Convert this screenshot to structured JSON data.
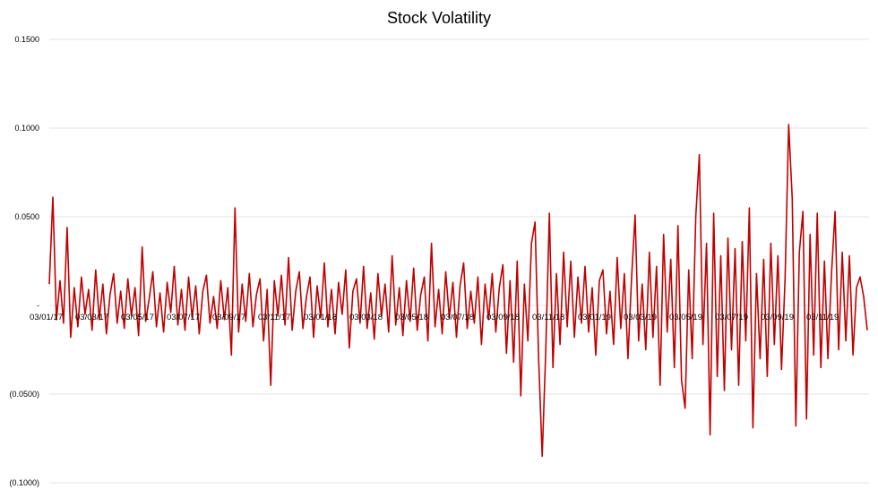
{
  "chart_data": {
    "type": "line",
    "title": "Stock Volatility",
    "xlabel": "",
    "ylabel": "",
    "ylim": [
      -0.1,
      0.15
    ],
    "grid": true,
    "legend": "none",
    "line_color": "#c00000",
    "y_ticks": [
      {
        "value": 0.15,
        "label": "0.1500"
      },
      {
        "value": 0.1,
        "label": "0.1000"
      },
      {
        "value": 0.05,
        "label": "0.0500"
      },
      {
        "value": 0,
        "label": "-"
      },
      {
        "value": -0.05,
        "label": "(0.0500)"
      },
      {
        "value": -0.1,
        "label": "(0.1000)"
      }
    ],
    "x_tick_labels": [
      "03/01/17",
      "03/03/17",
      "03/05/17",
      "03/07/17",
      "03/09/17",
      "03/11/17",
      "03/01/18",
      "03/03/18",
      "03/05/18",
      "03/07/18",
      "03/09/18",
      "03/11/18",
      "03/01/19",
      "03/03/19",
      "03/05/19",
      "03/07/19",
      "03/09/19",
      "03/11/19"
    ],
    "values": [
      0.012,
      0.061,
      -0.008,
      0.014,
      -0.01,
      0.044,
      -0.018,
      0.01,
      -0.012,
      0.016,
      -0.005,
      0.009,
      -0.014,
      0.02,
      -0.008,
      0.012,
      -0.016,
      0.006,
      0.018,
      -0.01,
      0.008,
      -0.013,
      0.015,
      -0.006,
      0.01,
      -0.017,
      0.033,
      -0.009,
      0.004,
      0.019,
      -0.012,
      0.007,
      -0.015,
      0.013,
      -0.004,
      0.022,
      -0.011,
      0.009,
      -0.014,
      0.016,
      -0.007,
      0.011,
      -0.016,
      0.008,
      0.017,
      -0.01,
      0.005,
      -0.013,
      0.014,
      -0.008,
      0.01,
      -0.028,
      0.055,
      -0.015,
      0.012,
      -0.009,
      0.018,
      -0.012,
      0.006,
      0.015,
      -0.02,
      0.009,
      -0.045,
      0.014,
      -0.006,
      0.017,
      -0.011,
      0.027,
      -0.014,
      0.008,
      0.019,
      -0.013,
      0.005,
      0.016,
      -0.018,
      0.011,
      -0.007,
      0.024,
      -0.012,
      0.009,
      -0.016,
      0.013,
      -0.005,
      0.02,
      -0.024,
      0.008,
      0.015,
      -0.01,
      0.022,
      -0.013,
      0.007,
      -0.019,
      0.018,
      -0.006,
      0.012,
      -0.015,
      0.028,
      -0.011,
      0.01,
      -0.017,
      0.014,
      -0.009,
      0.021,
      -0.014,
      0.006,
      0.016,
      -0.02,
      0.035,
      -0.012,
      0.009,
      -0.016,
      0.019,
      -0.007,
      0.013,
      -0.018,
      0.011,
      0.024,
      -0.013,
      0.008,
      -0.01,
      0.016,
      -0.022,
      0.012,
      -0.008,
      0.018,
      -0.015,
      0.01,
      0.023,
      -0.027,
      0.014,
      -0.032,
      0.025,
      -0.051,
      0.012,
      -0.02,
      0.035,
      0.047,
      -0.03,
      -0.085,
      -0.025,
      0.052,
      -0.035,
      0.018,
      -0.022,
      0.03,
      -0.012,
      0.025,
      -0.018,
      0.016,
      -0.01,
      0.022,
      -0.015,
      0.01,
      -0.028,
      0.014,
      0.02,
      -0.016,
      0.008,
      -0.022,
      0.027,
      -0.013,
      0.018,
      -0.03,
      0.015,
      0.051,
      -0.02,
      0.012,
      -0.025,
      0.03,
      -0.018,
      0.022,
      -0.045,
      0.04,
      -0.015,
      0.026,
      -0.035,
      0.045,
      -0.042,
      -0.058,
      0.02,
      -0.03,
      0.05,
      0.085,
      -0.022,
      0.035,
      -0.073,
      0.052,
      -0.04,
      0.028,
      -0.048,
      0.038,
      -0.025,
      0.032,
      -0.045,
      0.036,
      -0.02,
      0.055,
      -0.069,
      0.018,
      -0.03,
      0.026,
      -0.04,
      0.035,
      -0.022,
      0.028,
      -0.036,
      0.015,
      0.102,
      0.06,
      -0.068,
      0.03,
      0.053,
      -0.064,
      0.04,
      -0.028,
      0.052,
      -0.035,
      0.025,
      -0.03,
      0.018,
      0.053,
      -0.025,
      0.03,
      -0.02,
      0.028,
      -0.028,
      0.01,
      0.016,
      0.005,
      -0.014
    ]
  }
}
